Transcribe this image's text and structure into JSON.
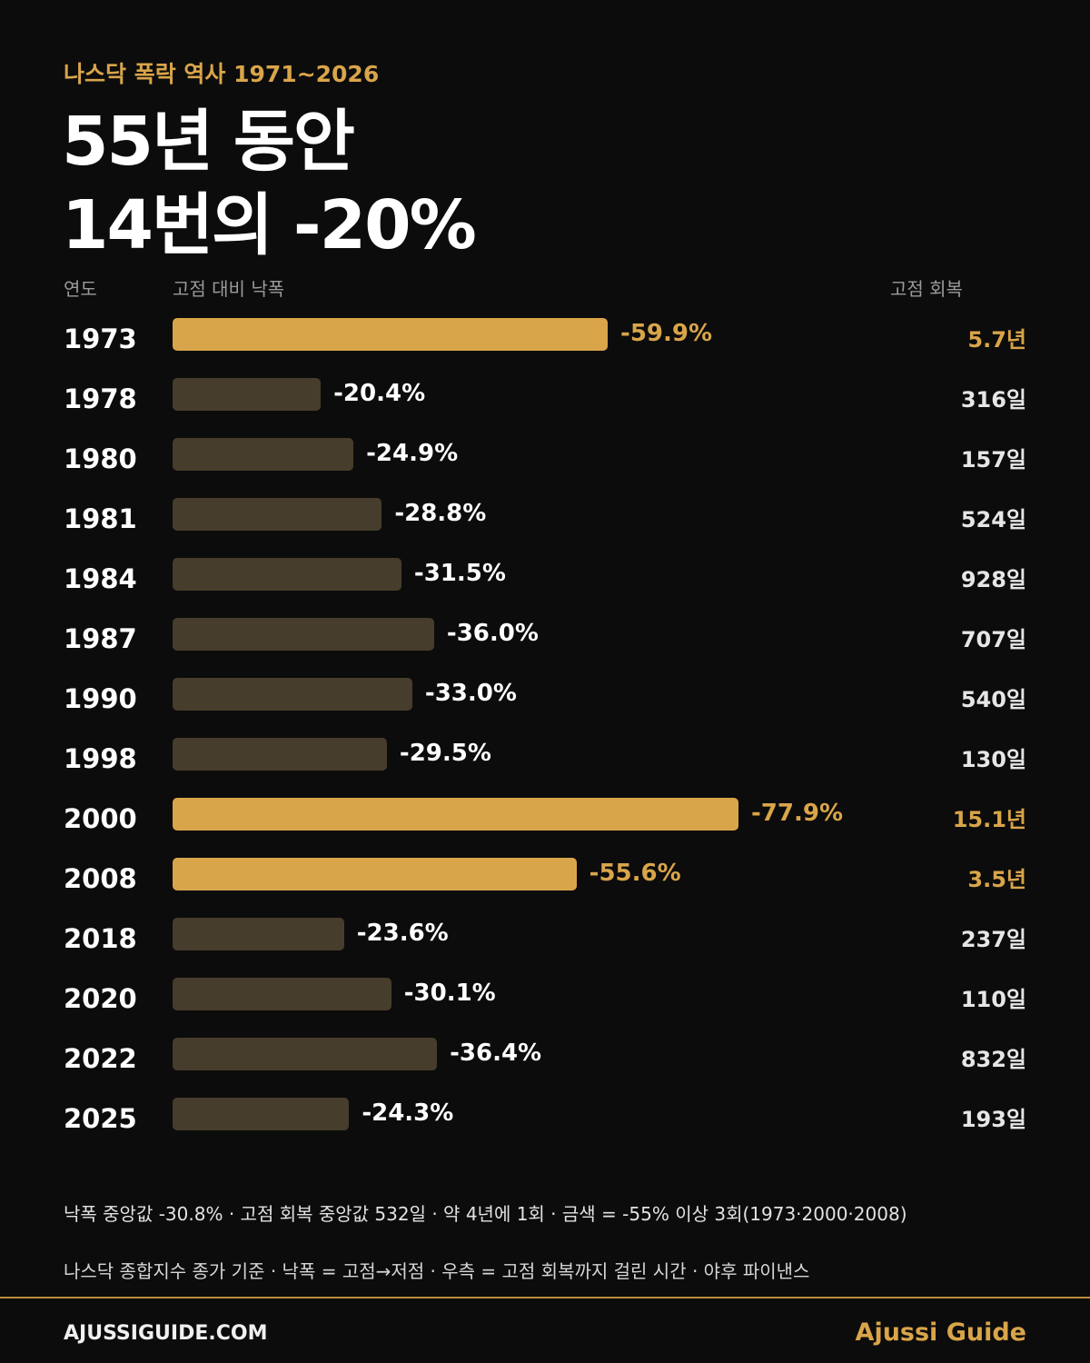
{
  "header": {
    "subtitle": "나스닥 폭락 역사 1971~2026",
    "title_line1": "55년 동안",
    "title_line2": "14번의 -20%"
  },
  "columns": {
    "year": "연도",
    "drawdown": "고점 대비 낙폭",
    "recovery": "고점 회복"
  },
  "colors": {
    "accent": "#d9a54a",
    "bar_normal": "#473d2c",
    "background": "#0c0c0c"
  },
  "chart_data": {
    "type": "bar",
    "orientation": "horizontal",
    "categories": [
      "1973",
      "1978",
      "1980",
      "1981",
      "1984",
      "1987",
      "1990",
      "1998",
      "2000",
      "2008",
      "2018",
      "2020",
      "2022",
      "2025"
    ],
    "values": [
      -59.9,
      -20.4,
      -24.9,
      -28.8,
      -31.5,
      -36.0,
      -33.0,
      -29.5,
      -77.9,
      -55.6,
      -23.6,
      -30.1,
      -36.4,
      -24.3
    ],
    "value_labels": [
      "-59.9%",
      "-20.4%",
      "-24.9%",
      "-28.8%",
      "-31.5%",
      "-36.0%",
      "-33.0%",
      "-29.5%",
      "-77.9%",
      "-55.6%",
      "-23.6%",
      "-30.1%",
      "-36.4%",
      "-24.3%"
    ],
    "recovery": [
      "5.7년",
      "316일",
      "157일",
      "524일",
      "928일",
      "707일",
      "540일",
      "130일",
      "15.1년",
      "3.5년",
      "237일",
      "110일",
      "832일",
      "193일"
    ],
    "highlight": [
      true,
      false,
      false,
      false,
      false,
      false,
      false,
      false,
      true,
      true,
      false,
      false,
      false,
      false
    ],
    "xlim": [
      0,
      -77.9
    ]
  },
  "notes": {
    "line1": "낙폭 중앙값 -30.8% · 고점 회복 중앙값 532일 · 약 4년에 1회 · 금색 = -55% 이상 3회(1973·2000·2008)",
    "line2": "나스닥 종합지수 종가 기준 · 낙폭 = 고점→저점 · 우측 = 고점 회복까지 걸린 시간 · 야후 파이낸스"
  },
  "footer": {
    "site": "AJUSSIGUIDE.COM",
    "brand": "Ajussi Guide"
  }
}
